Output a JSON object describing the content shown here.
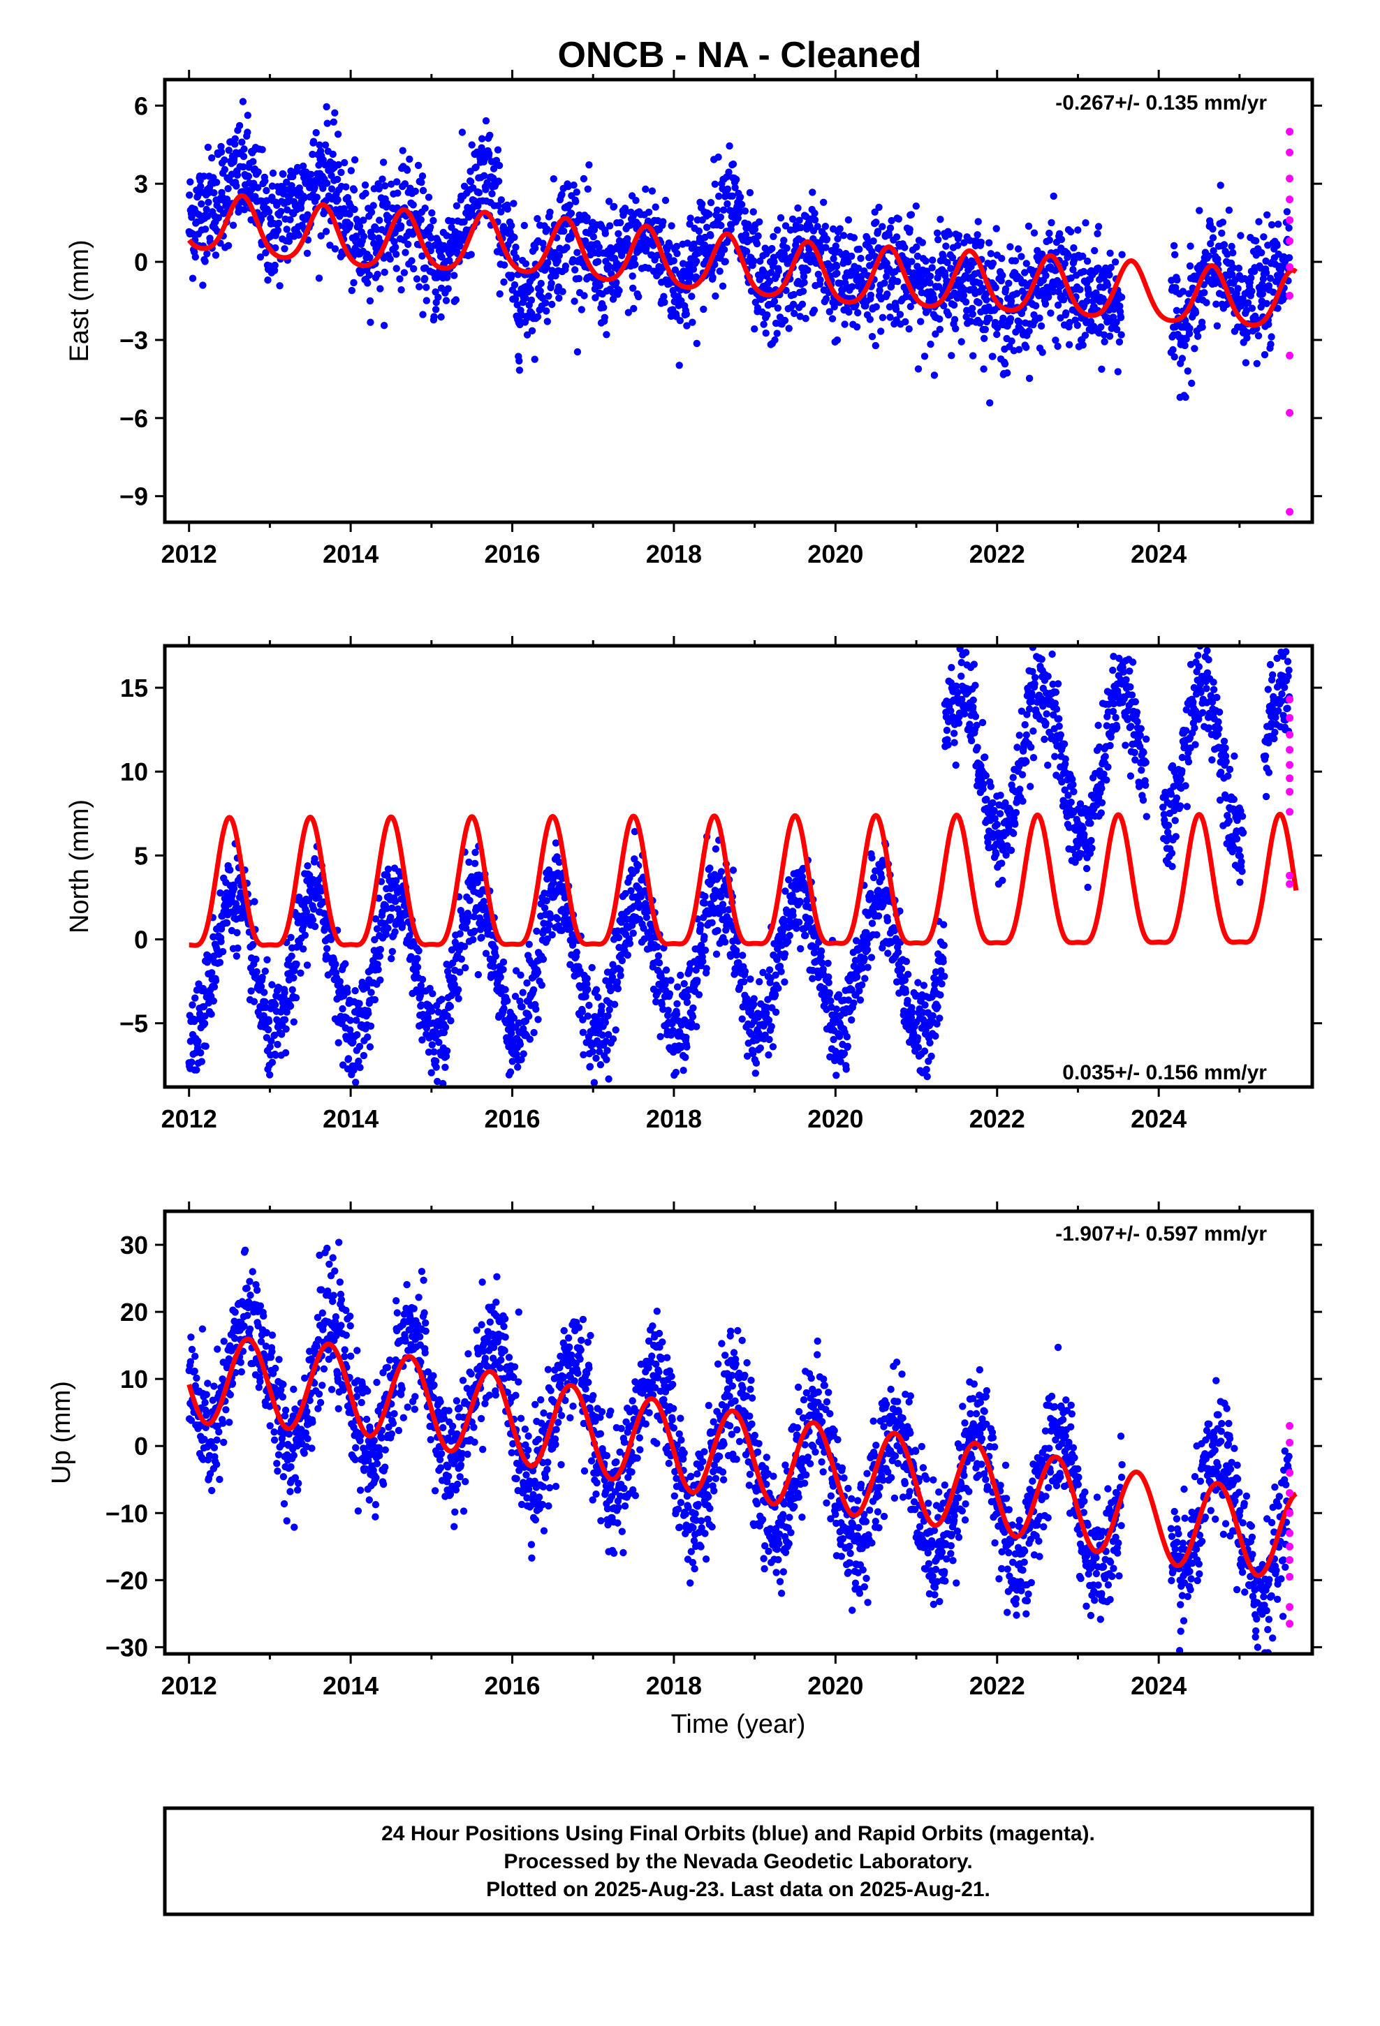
{
  "title": "ONCB  - NA - Cleaned",
  "xlabel": "Time (year)",
  "colors": {
    "final_orbits": "#0000ff",
    "rapid_orbits": "#ff00ff",
    "model": "#ff0000",
    "frame": "#000000"
  },
  "footer": {
    "line1": "24 Hour Positions Using Final Orbits (blue) and Rapid Orbits (magenta).",
    "line2": "Processed by the Nevada Geodetic Laboratory.",
    "line3": "Plotted on 2025-Aug-23. Last data on 2025-Aug-21."
  },
  "chart_data": [
    {
      "type": "scatter",
      "component": "east",
      "ylabel": "East (mm)",
      "rate_label": "-0.267+/- 0.135 mm/yr",
      "xlim": [
        2011.7,
        2025.9
      ],
      "ylim": [
        -10,
        7
      ],
      "xticks": [
        2012,
        2014,
        2016,
        2018,
        2020,
        2022,
        2024
      ],
      "yticks": [
        6,
        3,
        0,
        -3,
        -6,
        -9
      ],
      "ytick_labels": [
        "6",
        "3",
        "0",
        "−3",
        "−6",
        "−9"
      ],
      "series": [
        {
          "role": "final",
          "center": [
            [
              2012.0,
              1.5
            ],
            [
              2012.7,
              3.5
            ],
            [
              2013.0,
              1.2
            ],
            [
              2013.7,
              3.5
            ],
            [
              2014.1,
              0.5
            ],
            [
              2014.7,
              2.0
            ],
            [
              2015.1,
              -0.5
            ],
            [
              2015.7,
              3.5
            ],
            [
              2016.1,
              -1.5
            ],
            [
              2016.7,
              1.5
            ],
            [
              2017.1,
              -0.5
            ],
            [
              2017.7,
              1.0
            ],
            [
              2018.1,
              -1.0
            ],
            [
              2018.7,
              2.5
            ],
            [
              2019.1,
              -1.5
            ],
            [
              2019.7,
              0.5
            ],
            [
              2020.1,
              -1.0
            ],
            [
              2020.7,
              0.0
            ],
            [
              2021.1,
              -1.0
            ],
            [
              2021.7,
              -0.5
            ],
            [
              2022.1,
              -2.0
            ],
            [
              2022.7,
              -0.5
            ],
            [
              2023.1,
              -1.5
            ],
            [
              2023.5,
              -1.5
            ],
            [
              2024.3,
              -2.5
            ],
            [
              2024.7,
              0.0
            ],
            [
              2025.0,
              -1.5
            ],
            [
              2025.4,
              -1.0
            ],
            [
              2025.6,
              0.5
            ]
          ],
          "spread": 1.1,
          "gaps": [
            [
              2023.55,
              2024.15
            ]
          ]
        },
        {
          "role": "rapid",
          "points": [
            [
              2025.6,
              5.0
            ],
            [
              2025.6,
              4.2
            ],
            [
              2025.6,
              3.2
            ],
            [
              2025.6,
              2.4
            ],
            [
              2025.6,
              1.6
            ],
            [
              2025.6,
              0.8
            ],
            [
              2025.6,
              -0.2
            ],
            [
              2025.6,
              -1.3
            ],
            [
              2025.6,
              -3.6
            ],
            [
              2025.6,
              -5.8
            ],
            [
              2025.6,
              -9.6
            ]
          ]
        },
        {
          "role": "model",
          "mean": [
            [
              2012.0,
              1.5
            ],
            [
              2014.0,
              0.8
            ],
            [
              2016.0,
              0.6
            ],
            [
              2018.0,
              0.0
            ],
            [
              2020.0,
              -0.6
            ],
            [
              2022.0,
              -0.9
            ],
            [
              2024.0,
              -1.3
            ],
            [
              2025.7,
              -1.6
            ]
          ],
          "amplitude": 1.1,
          "peak_phase": 0.66,
          "semi_annual": 0.45
        }
      ]
    },
    {
      "type": "scatter",
      "component": "north",
      "ylabel": "North (mm)",
      "rate_label": "0.035+/- 0.156 mm/yr",
      "xlim": [
        2011.7,
        2025.9
      ],
      "ylim": [
        -8.8,
        17.5
      ],
      "xticks": [
        2012,
        2014,
        2016,
        2018,
        2020,
        2022,
        2024
      ],
      "yticks": [
        15,
        10,
        5,
        0,
        -5
      ],
      "ytick_labels": [
        "15",
        "10",
        "5",
        "0",
        "−5"
      ],
      "series": [
        {
          "role": "final",
          "segments": [
            {
              "from": 2012.0,
              "to": 2021.35,
              "mean": -1.5,
              "amplitude": 4.2,
              "peak_phase": 0.55
            },
            {
              "from": 2021.35,
              "to": 2023.85,
              "mean": 10.5,
              "amplitude": 4.5,
              "peak_phase": 0.55
            },
            {
              "from": 2024.05,
              "to": 2025.7,
              "mean": 10.5,
              "amplitude": 4.5,
              "peak_phase": 0.55
            }
          ],
          "spread": 1.4,
          "gaps": [
            [
              2025.05,
              2025.3
            ]
          ]
        },
        {
          "role": "rapid",
          "points": [
            [
              2025.6,
              14.3
            ],
            [
              2025.6,
              13.2
            ],
            [
              2025.6,
              12.2
            ],
            [
              2025.6,
              11.3
            ],
            [
              2025.6,
              10.4
            ],
            [
              2025.6,
              9.6
            ],
            [
              2025.6,
              8.8
            ],
            [
              2025.6,
              7.6
            ],
            [
              2025.6,
              3.8
            ],
            [
              2025.6,
              3.3
            ]
          ]
        },
        {
          "role": "model",
          "mean": [
            [
              2012.0,
              2.4
            ],
            [
              2025.7,
              2.6
            ]
          ],
          "amplitude": 3.8,
          "peak_phase": 0.5,
          "semi_annual": 0.8
        }
      ]
    },
    {
      "type": "scatter",
      "component": "up",
      "ylabel": "Up (mm)",
      "rate_label": "-1.907+/- 0.597 mm/yr",
      "xlim": [
        2011.7,
        2025.9
      ],
      "ylim": [
        -31,
        35
      ],
      "xticks": [
        2012,
        2014,
        2016,
        2018,
        2020,
        2022,
        2024
      ],
      "yticks": [
        30,
        20,
        10,
        0,
        -10,
        -20,
        -30
      ],
      "ytick_labels": [
        "30",
        "20",
        "10",
        "0",
        "−10",
        "−20",
        "−30"
      ],
      "series": [
        {
          "role": "final",
          "trend": [
            [
              2012.0,
              11.0
            ],
            [
              2016.0,
              5.5
            ],
            [
              2018.0,
              0.0
            ],
            [
              2020.0,
              -5.0
            ],
            [
              2022.0,
              -7.5
            ],
            [
              2024.0,
              -10.0
            ],
            [
              2025.7,
              -13.0
            ]
          ],
          "amplitude": 9.5,
          "peak_phase": 0.75,
          "spread": 4.5,
          "gaps": [
            [
              2023.55,
              2024.15
            ]
          ]
        },
        {
          "role": "rapid",
          "points": [
            [
              2025.6,
              3.0
            ],
            [
              2025.6,
              0.5
            ],
            [
              2025.6,
              -4.0
            ],
            [
              2025.6,
              -7.0
            ],
            [
              2025.6,
              -10.0
            ],
            [
              2025.6,
              -13.0
            ],
            [
              2025.6,
              -15.0
            ],
            [
              2025.6,
              -17.0
            ],
            [
              2025.6,
              -19.5
            ],
            [
              2025.6,
              -24.0
            ],
            [
              2025.6,
              -26.5
            ]
          ]
        },
        {
          "role": "model",
          "mean": [
            [
              2012.0,
              10.0
            ],
            [
              2014.0,
              8.5
            ],
            [
              2016.0,
              4.0
            ],
            [
              2018.0,
              0.0
            ],
            [
              2020.0,
              -3.5
            ],
            [
              2022.0,
              -6.5
            ],
            [
              2024.0,
              -11.0
            ],
            [
              2025.7,
              -13.5
            ]
          ],
          "amplitude": 6.5,
          "peak_phase": 0.73,
          "semi_annual": 0.0
        }
      ]
    }
  ]
}
